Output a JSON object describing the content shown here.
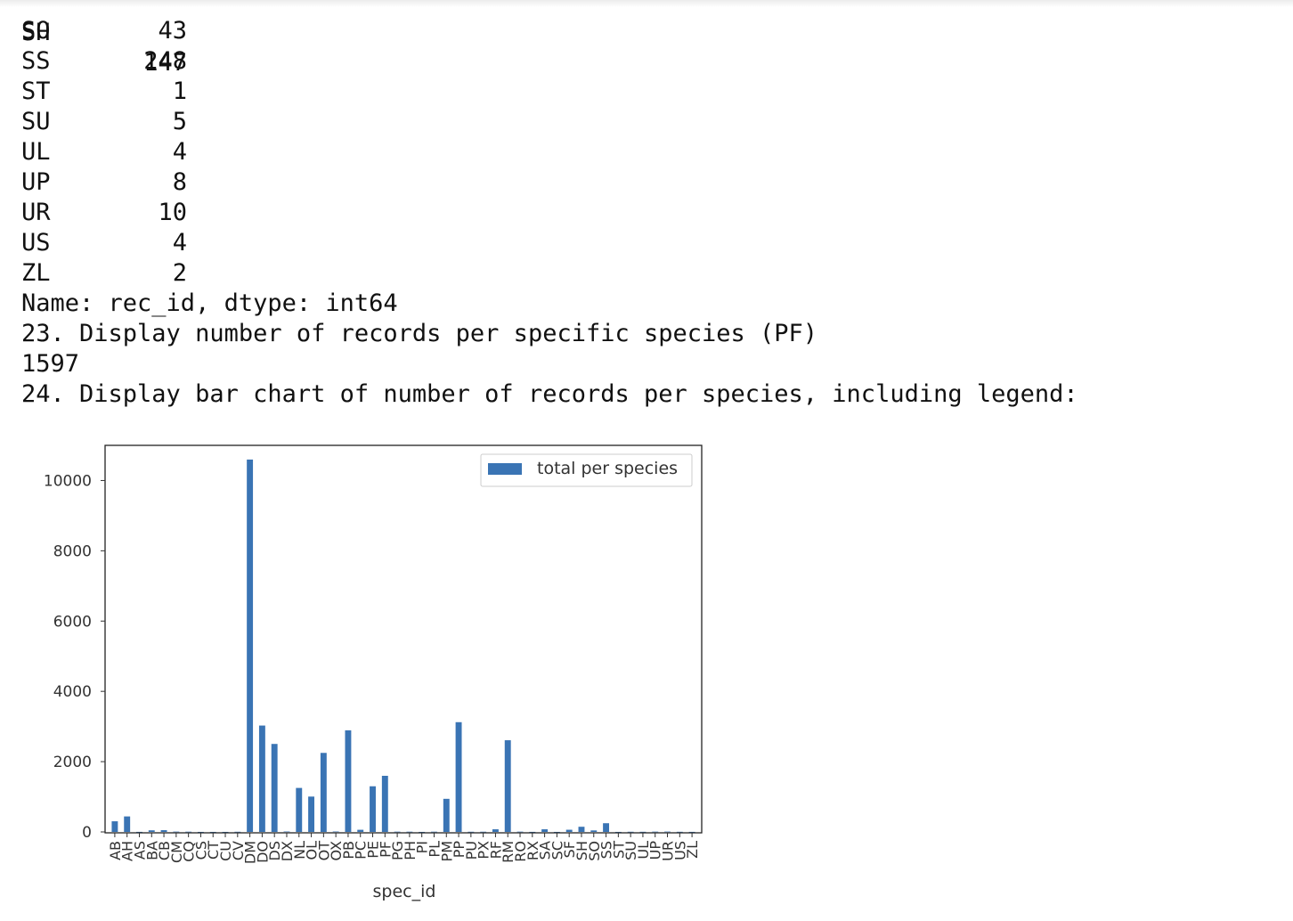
{
  "output": {
    "partial_row": {
      "key": "SH",
      "value": "147"
    },
    "rows": [
      {
        "key": "SO",
        "value": "43"
      },
      {
        "key": "SS",
        "value": "248"
      },
      {
        "key": "ST",
        "value": "1"
      },
      {
        "key": "SU",
        "value": "5"
      },
      {
        "key": "UL",
        "value": "4"
      },
      {
        "key": "UP",
        "value": "8"
      },
      {
        "key": "UR",
        "value": "10"
      },
      {
        "key": "US",
        "value": "4"
      },
      {
        "key": "ZL",
        "value": "2"
      }
    ],
    "series_footer": "Name: rec_id, dtype: int64",
    "step23": "23. Display number of records per specific species (PF)",
    "step23_result": "1597",
    "step24": "24. Display bar chart of number of records per species, including legend:"
  },
  "colors": {
    "bar": "#3a74b4",
    "text": "#111111",
    "axis": "#333333"
  },
  "chart_data": {
    "type": "bar",
    "xlabel": "spec_id",
    "ylabel": "",
    "ylim": [
      0,
      11000
    ],
    "yticks": [
      0,
      2000,
      4000,
      6000,
      8000,
      10000
    ],
    "legend": {
      "label": "total per species",
      "placement": "top-right"
    },
    "categories": [
      "AB",
      "AH",
      "AS",
      "BA",
      "CB",
      "CM",
      "CQ",
      "CS",
      "CT",
      "CU",
      "CV",
      "DM",
      "DO",
      "DS",
      "DX",
      "NL",
      "OL",
      "OT",
      "OX",
      "PB",
      "PC",
      "PE",
      "PF",
      "PG",
      "PH",
      "PI",
      "PL",
      "PM",
      "PP",
      "PU",
      "PX",
      "RF",
      "RM",
      "RO",
      "RX",
      "SA",
      "SC",
      "SF",
      "SH",
      "SO",
      "SS",
      "ST",
      "SU",
      "UL",
      "UP",
      "UR",
      "US",
      "ZL"
    ],
    "series": [
      {
        "name": "total per species",
        "values": [
          303,
          441,
          2,
          46,
          50,
          9,
          7,
          1,
          1,
          1,
          5,
          10596,
          3027,
          2504,
          12,
          1252,
          1006,
          2249,
          12,
          2891,
          61,
          1299,
          1597,
          8,
          7,
          1,
          7,
          942,
          3123,
          5,
          6,
          75,
          2609,
          8,
          2,
          75,
          1,
          62,
          147,
          43,
          248,
          1,
          5,
          4,
          8,
          10,
          4,
          2
        ]
      }
    ]
  }
}
